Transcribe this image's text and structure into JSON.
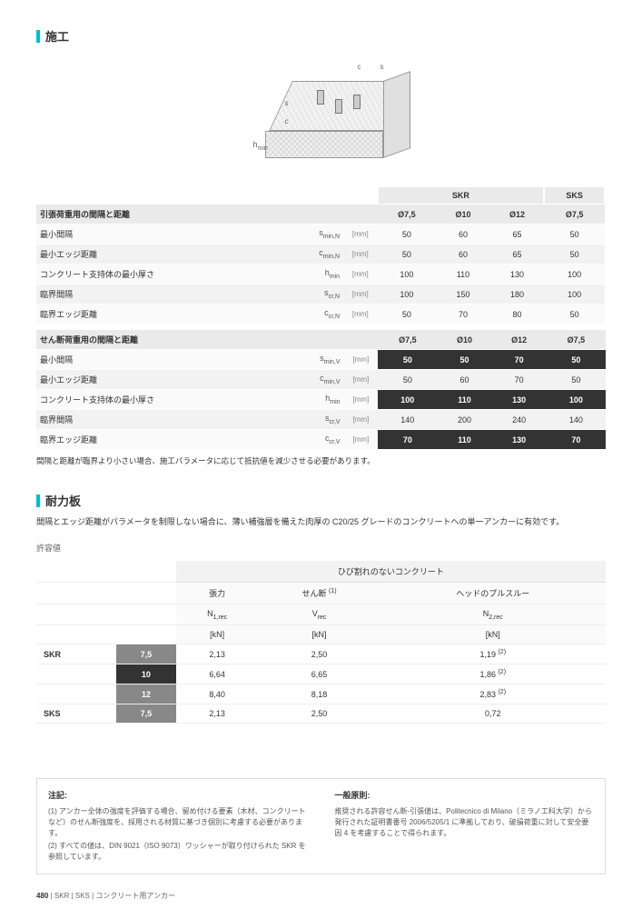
{
  "sections": {
    "construction": "施工",
    "capacity": "耐力板"
  },
  "diagram": {
    "c": "c",
    "s": "s",
    "hmin": "hmin"
  },
  "specHead": {
    "skr": "SKR",
    "sks": "SKS",
    "d75": "Ø7,5",
    "d10": "Ø10",
    "d12": "Ø12",
    "d75b": "Ø7,5"
  },
  "spec1": {
    "title": "引張荷重用の間隔と距離",
    "rows": [
      {
        "label": "最小間隔",
        "sym": "s<sub class='sub'>min,N</sub>",
        "unit": "[mm]",
        "v": [
          "50",
          "60",
          "65",
          "50"
        ]
      },
      {
        "label": "最小エッジ距離",
        "sym": "c<sub class='sub'>min,N</sub>",
        "unit": "[mm]",
        "v": [
          "50",
          "60",
          "65",
          "50"
        ]
      },
      {
        "label": "コンクリート支持体の最小厚さ",
        "sym": "h<sub class='sub'>min</sub>",
        "unit": "[mm]",
        "v": [
          "100",
          "110",
          "130",
          "100"
        ]
      },
      {
        "label": "臨界間隔",
        "sym": "s<sub class='sub'>cr,N</sub>",
        "unit": "[mm]",
        "v": [
          "100",
          "150",
          "180",
          "100"
        ]
      },
      {
        "label": "臨界エッジ距離",
        "sym": "c<sub class='sub'>cr,N</sub>",
        "unit": "[mm]",
        "v": [
          "50",
          "70",
          "80",
          "50"
        ]
      }
    ]
  },
  "spec2": {
    "title": "せん断荷重用の間隔と距離",
    "rows": [
      {
        "label": "最小間隔",
        "sym": "s<sub class='sub'>min,V</sub>",
        "unit": "[mm]",
        "v": [
          "50",
          "50",
          "70",
          "50"
        ],
        "dark": true
      },
      {
        "label": "最小エッジ距離",
        "sym": "c<sub class='sub'>min,V</sub>",
        "unit": "[mm]",
        "v": [
          "50",
          "60",
          "70",
          "50"
        ],
        "dark": false
      },
      {
        "label": "コンクリート支持体の最小厚さ",
        "sym": "h<sub class='sub'>min</sub>",
        "unit": "[mm]",
        "v": [
          "100",
          "110",
          "130",
          "100"
        ],
        "dark": true
      },
      {
        "label": "臨界間隔",
        "sym": "s<sub class='sub'>cr,V</sub>",
        "unit": "[mm]",
        "v": [
          "140",
          "200",
          "240",
          "140"
        ],
        "dark": false
      },
      {
        "label": "臨界エッジ距離",
        "sym": "c<sub class='sub'>cr,V</sub>",
        "unit": "[mm]",
        "v": [
          "70",
          "110",
          "130",
          "70"
        ],
        "dark": true
      }
    ]
  },
  "specNote": "間隔と距離が臨界より小さい場合、施工パラメータに応じて抵抗値を減少させる必要があります。",
  "capIntro": "間隔とエッジ距離がパラメータを制限しない場合に、薄い補強層を備えた肉厚の  C20/25  グレードのコンクリートへの単一アンカーに有効です。",
  "capSub": "許容値",
  "capHead": {
    "top": "ひび割れのないコンクリート",
    "c1": "張力",
    "c2": "せん断",
    "c2sup": "(1)",
    "c3": "ヘッドのプルスルー",
    "n1": "N<sub class='sub'>1,rec</sub>",
    "n2": "V<sub class='sub'>rec</sub>",
    "n3": "N<sub class='sub'>2,rec</sub>",
    "u": "[kN]"
  },
  "capRows": [
    {
      "grp": "SKR",
      "diam": "7,5",
      "diamCls": "diam-grey",
      "v": [
        "2,13",
        "2,50",
        "1,19"
      ],
      "sup": "(2)"
    },
    {
      "grp": "",
      "diam": "10",
      "diamCls": "diam",
      "v": [
        "6,64",
        "6,65",
        "1,86"
      ],
      "sup": "(2)"
    },
    {
      "grp": "",
      "diam": "12",
      "diamCls": "diam-grey",
      "v": [
        "8,40",
        "8,18",
        "2,83"
      ],
      "sup": "(2)"
    },
    {
      "grp": "SKS",
      "diam": "7,5",
      "diamCls": "diam-grey",
      "v": [
        "2,13",
        "2,50",
        "0,72"
      ],
      "sup": ""
    }
  ],
  "footnotes": {
    "left_h": "注記:",
    "left": [
      "(1) アンカー全体の強度を評価する場合、留め付ける要素（木材、コンクリートなど）のせん断強度を、採用される材質に基づき個別に考慮する必要があります。",
      "(2) すべての値は、DIN 9021（ISO 9073）ワッシャーが取り付けられた SKR を参照しています。"
    ],
    "right_h": "一般原則:",
    "right": [
      "推奨される許容せん断-引張値は、Politecnico di Milano（ミラノ工科大学）から発行された証明書番号  2006/5205/1  に準拠しており、破損荷重に対して安全要因 4 を考慮することで得られます。"
    ]
  },
  "footer": {
    "page": "480",
    "path": "SKR | SKS",
    "label": "コンクリート用アンカー"
  }
}
